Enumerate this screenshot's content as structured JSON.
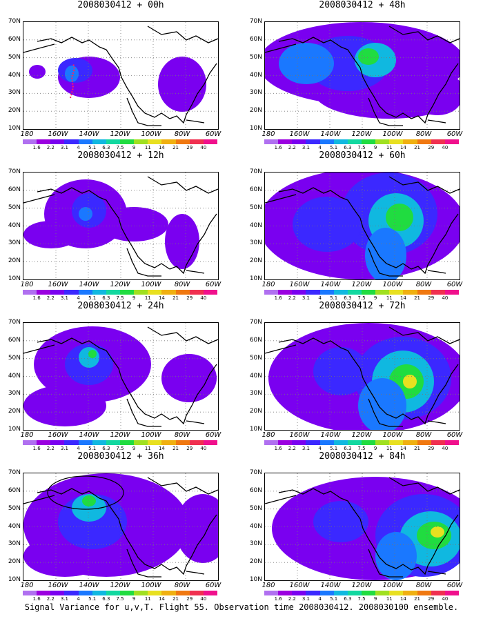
{
  "panels": [
    {
      "title": "2008030412 + 00h",
      "blobs": [
        [
          95,
          80,
          45,
          30,
          1
        ],
        [
          20,
          72,
          12,
          10,
          1
        ],
        [
          230,
          90,
          35,
          40,
          1
        ],
        [
          75,
          70,
          25,
          18,
          2
        ],
        [
          70,
          75,
          10,
          12,
          3
        ]
      ]
    },
    {
      "title": "2008030412 + 12h",
      "blobs": [
        [
          90,
          60,
          60,
          50,
          1
        ],
        [
          40,
          90,
          40,
          20,
          1
        ],
        [
          160,
          75,
          50,
          25,
          1
        ],
        [
          230,
          100,
          25,
          40,
          1
        ],
        [
          95,
          55,
          25,
          25,
          2
        ],
        [
          90,
          60,
          10,
          10,
          3
        ]
      ]
    },
    {
      "title": "2008030412 + 24h",
      "blobs": [
        [
          100,
          60,
          85,
          55,
          1
        ],
        [
          60,
          120,
          60,
          30,
          1
        ],
        [
          240,
          80,
          40,
          35,
          1
        ],
        [
          95,
          60,
          35,
          30,
          2
        ],
        [
          95,
          50,
          15,
          15,
          4
        ],
        [
          100,
          45,
          6,
          6,
          6
        ]
      ]
    },
    {
      "title": "2008030412 + 36h",
      "blobs": [
        [
          120,
          75,
          120,
          75,
          1
        ],
        [
          60,
          120,
          60,
          30,
          1
        ],
        [
          260,
          80,
          40,
          50,
          1
        ],
        [
          100,
          70,
          50,
          40,
          2
        ],
        [
          95,
          50,
          25,
          20,
          4
        ],
        [
          95,
          40,
          10,
          8,
          6
        ]
      ]
    },
    {
      "title": "2008030412 + 48h",
      "blobs": [
        [
          140,
          60,
          150,
          60,
          1
        ],
        [
          180,
          100,
          110,
          40,
          1
        ],
        [
          120,
          60,
          60,
          40,
          2
        ],
        [
          60,
          60,
          40,
          30,
          3
        ],
        [
          160,
          55,
          30,
          25,
          4
        ],
        [
          150,
          50,
          15,
          12,
          6
        ],
        [
          250,
          110,
          35,
          25,
          1
        ]
      ]
    },
    {
      "title": "2008030412 + 60h",
      "blobs": [
        [
          140,
          75,
          150,
          80,
          1
        ],
        [
          180,
          60,
          70,
          60,
          2
        ],
        [
          190,
          70,
          40,
          40,
          4
        ],
        [
          195,
          65,
          20,
          20,
          6
        ],
        [
          90,
          75,
          50,
          40,
          2
        ],
        [
          175,
          120,
          30,
          40,
          3
        ]
      ]
    },
    {
      "title": "2008030412 + 72h",
      "blobs": [
        [
          150,
          80,
          145,
          80,
          1
        ],
        [
          200,
          80,
          70,
          60,
          2
        ],
        [
          200,
          85,
          45,
          45,
          4
        ],
        [
          205,
          85,
          25,
          25,
          6
        ],
        [
          210,
          85,
          10,
          10,
          8
        ],
        [
          110,
          70,
          40,
          35,
          2
        ],
        [
          170,
          120,
          35,
          40,
          3
        ]
      ]
    },
    {
      "title": "2008030412 + 84h",
      "blobs": [
        [
          160,
          80,
          150,
          75,
          1
        ],
        [
          230,
          90,
          70,
          60,
          2
        ],
        [
          240,
          95,
          45,
          40,
          4
        ],
        [
          245,
          90,
          25,
          20,
          6
        ],
        [
          250,
          85,
          10,
          8,
          8
        ],
        [
          110,
          70,
          40,
          30,
          2
        ],
        [
          190,
          120,
          30,
          35,
          3
        ]
      ]
    }
  ],
  "y_ticks": [
    "70N",
    "60N",
    "50N",
    "40N",
    "30N",
    "20N",
    "10N"
  ],
  "x_ticks": [
    "180",
    "160W",
    "140W",
    "120W",
    "100W",
    "80W",
    "60W"
  ],
  "colorbar_labels": [
    "1.6",
    "2.2",
    "3.1",
    "4",
    "5.1",
    "6.3",
    "7.5",
    "9",
    "11",
    "14",
    "21",
    "29",
    "40"
  ],
  "colorbar_colors": [
    "#9b00e0",
    "#7a00f0",
    "#3b28ff",
    "#1a78ff",
    "#10b8e0",
    "#12d8a0",
    "#20dc40",
    "#a0e020",
    "#e8e020",
    "#f0b010",
    "#f07810",
    "#f03050",
    "#f0108c"
  ],
  "caption": "Signal Variance for u,v,T. Flight 55. Observation time 2008030412. 2008030100 ensemble."
}
